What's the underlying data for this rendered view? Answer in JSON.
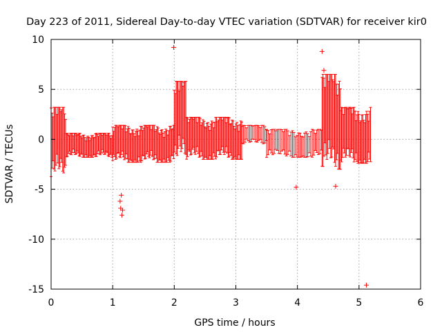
{
  "chart_data": {
    "type": "scatter",
    "title": "Day 223 of 2011, Sidereal Day-to-day VTEC variation (SDTVAR) for receiver kir0",
    "xlabel": "GPS time / hours",
    "ylabel": "SDTVAR / TECUs",
    "xlim": [
      0,
      6
    ],
    "ylim": [
      -15,
      10
    ],
    "xticks": [
      0,
      1,
      2,
      3,
      4,
      5,
      6
    ],
    "yticks": [
      -15,
      -10,
      -5,
      0,
      5,
      10
    ],
    "xtick_labels": [
      "0",
      "1",
      "2",
      "3",
      "4",
      "5",
      "6"
    ],
    "ytick_labels": [
      "-15",
      "-10",
      "-5",
      "0",
      "5",
      "10"
    ],
    "grid": true,
    "marker": "+",
    "color": "#ff0000",
    "band_segments": [
      {
        "x": [
          0.0,
          0.25
        ],
        "ymin": -3.8,
        "ymax": 3.2,
        "density": "high"
      },
      {
        "x": [
          0.25,
          1.0
        ],
        "ymin": -1.8,
        "ymax": 0.6,
        "density": "high"
      },
      {
        "x": [
          1.0,
          2.0
        ],
        "ymin": -2.3,
        "ymax": 1.4,
        "density": "high"
      },
      {
        "x": [
          2.0,
          2.2
        ],
        "ymin": -2.2,
        "ymax": 5.8,
        "density": "high"
      },
      {
        "x": [
          2.2,
          3.1
        ],
        "ymin": -2.0,
        "ymax": 2.2,
        "density": "high"
      },
      {
        "x": [
          3.1,
          3.5
        ],
        "ymin": -0.5,
        "ymax": 1.4,
        "density": "medium"
      },
      {
        "x": [
          3.5,
          4.4
        ],
        "ymin": -1.8,
        "ymax": 1.0,
        "density": "medium"
      },
      {
        "x": [
          4.4,
          4.7
        ],
        "ymin": -3.0,
        "ymax": 6.5,
        "density": "high"
      },
      {
        "x": [
          4.7,
          5.2
        ],
        "ymin": -2.4,
        "ymax": 3.2,
        "density": "high"
      }
    ],
    "outliers": [
      {
        "x": 1.99,
        "y": 9.2
      },
      {
        "x": 4.4,
        "y": 8.8
      },
      {
        "x": 4.43,
        "y": 6.9
      },
      {
        "x": 1.14,
        "y": -5.6
      },
      {
        "x": 1.12,
        "y": -6.2
      },
      {
        "x": 1.13,
        "y": -6.9
      },
      {
        "x": 1.16,
        "y": -7.1
      },
      {
        "x": 1.15,
        "y": -7.6
      },
      {
        "x": 3.98,
        "y": -4.8
      },
      {
        "x": 4.62,
        "y": -4.7
      },
      {
        "x": 5.12,
        "y": -14.6
      }
    ]
  }
}
